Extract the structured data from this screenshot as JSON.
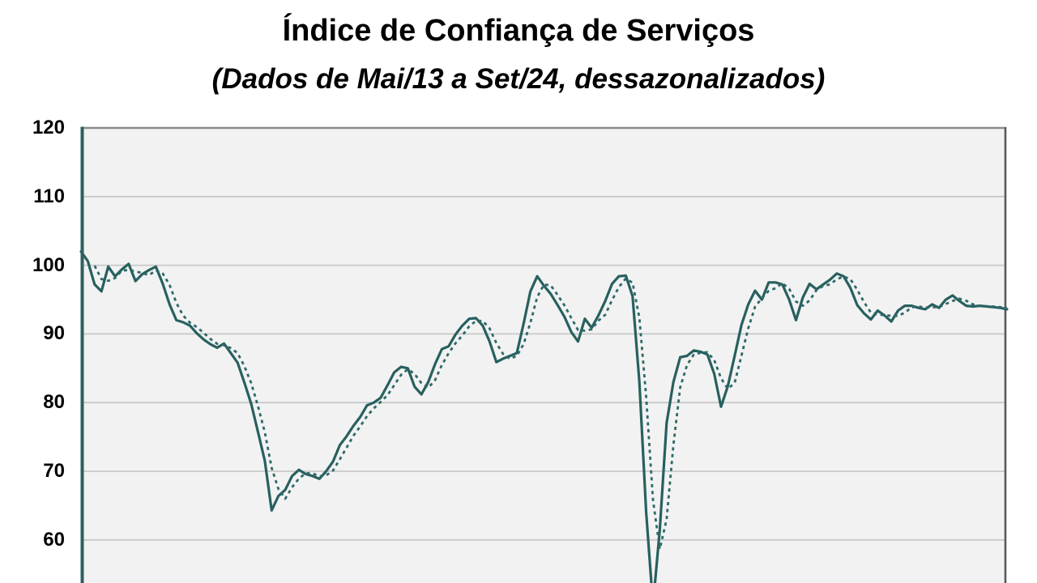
{
  "header": {
    "title": "Índice de Confiança de Serviços",
    "subtitle": "(Dados de Mai/13 a Set/24, dessazonalizados)"
  },
  "chart_data": {
    "type": "line",
    "title": "Índice de Confiança de Serviços",
    "subtitle": "(Dados de Mai/13 a Set/24, dessazonalizados)",
    "x_unit": "month",
    "x_first": "Mai/13",
    "x_last": "Set/24",
    "n_points": 137,
    "y_ticks": [
      120,
      110,
      100,
      90,
      80,
      70,
      60
    ],
    "y_axis_visible_range": [
      53.5,
      120
    ],
    "grid": true,
    "legend_position": "none-visible-cropped",
    "colors": {
      "plot_bg": "#f2f2f2",
      "grid": "#c8c8c8",
      "left_axis": "#2e5f5f",
      "top_border": "#8c8c8c",
      "right_border": "#595959"
    },
    "series": [
      {
        "id": "indice-dessazonalizado",
        "style": "solid",
        "color": "#27605f",
        "width": 3.2,
        "values": [
          102.0,
          100.6,
          97.2,
          96.2,
          99.8,
          98.4,
          99.4,
          100.2,
          97.7,
          98.7,
          99.3,
          99.8,
          97.3,
          94.3,
          92.0,
          91.7,
          91.2,
          90.1,
          89.2,
          88.5,
          88.0,
          88.6,
          87.2,
          85.8,
          82.9,
          79.8,
          75.7,
          71.5,
          64.3,
          66.4,
          67.3,
          69.3,
          70.2,
          69.6,
          69.3,
          68.9,
          70.0,
          71.4,
          73.8,
          75.1,
          76.6,
          77.9,
          79.6,
          80.0,
          80.7,
          82.5,
          84.4,
          85.2,
          85.0,
          82.3,
          81.2,
          83.0,
          85.6,
          87.8,
          88.2,
          89.9,
          91.2,
          92.2,
          92.3,
          91.2,
          88.9,
          85.9,
          86.4,
          86.8,
          87.2,
          91.5,
          96.2,
          98.4,
          97.0,
          95.8,
          94.2,
          92.5,
          90.3,
          88.9,
          92.2,
          90.9,
          92.7,
          94.8,
          97.3,
          98.4,
          98.5,
          95.5,
          83.0,
          64.0,
          50.5,
          61.5,
          77.0,
          83.0,
          86.6,
          86.8,
          87.6,
          87.4,
          87.0,
          84.2,
          79.4,
          82.4,
          86.8,
          91.3,
          94.3,
          96.3,
          95.0,
          97.5,
          97.5,
          97.2,
          95.0,
          92.0,
          95.3,
          97.3,
          96.5,
          97.2,
          97.9,
          98.8,
          98.4,
          96.7,
          94.2,
          93.0,
          92.1,
          93.4,
          92.7,
          91.8,
          93.4,
          94.1,
          94.1,
          93.8,
          93.6,
          94.3,
          93.8,
          95.0,
          95.6,
          94.8,
          94.1,
          94.0,
          94.1,
          94.0,
          93.9,
          93.8,
          93.6
        ]
      },
      {
        "id": "media-movel-trimestral",
        "style": "dashed",
        "color": "#2d6968",
        "width": 2.8,
        "derived_from": "indice-dessazonalizado",
        "derivation": "trailing_3_point_moving_average"
      }
    ]
  }
}
